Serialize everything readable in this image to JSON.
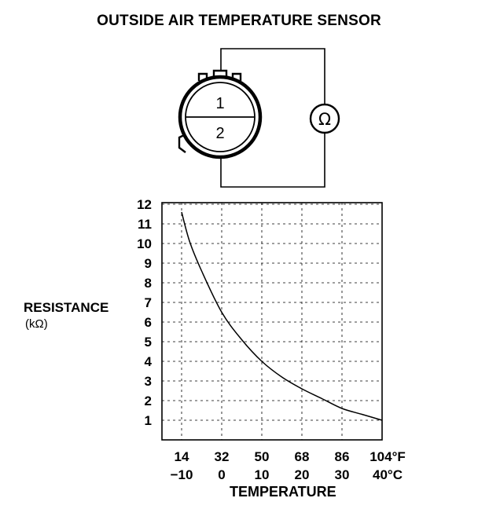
{
  "title": "OUTSIDE AIR TEMPERATURE SENSOR",
  "connector": {
    "terminal_1": "1",
    "terminal_2": "2",
    "meter_symbol": "Ω",
    "icons": [
      "connector-icon",
      "ohmmeter-icon"
    ]
  },
  "chart_data": {
    "type": "line",
    "ylabel": "RESISTANCE",
    "ylabel_unit": "(kΩ)",
    "xlabel": "TEMPERATURE",
    "y_ticks": [
      "1",
      "2",
      "3",
      "4",
      "5",
      "6",
      "7",
      "8",
      "9",
      "10",
      "11",
      "12"
    ],
    "x_ticks_f": [
      "14",
      "32",
      "50",
      "68",
      "86",
      "104°F"
    ],
    "x_ticks_c": [
      "−10",
      "0",
      "10",
      "20",
      "30",
      "40°C"
    ],
    "x_ticks_c_values": [
      -10,
      0,
      10,
      20,
      30,
      40
    ],
    "xlim": [
      -10,
      40
    ],
    "ylim": [
      0,
      12
    ],
    "grid": true,
    "series": [
      {
        "x": [
          -10,
          -8,
          -5,
          0,
          5,
          10,
          15,
          20,
          25,
          30,
          35,
          40
        ],
        "y": [
          11.6,
          10.1,
          8.6,
          6.5,
          5.1,
          4.0,
          3.2,
          2.6,
          2.1,
          1.6,
          1.3,
          1.0
        ]
      }
    ]
  }
}
